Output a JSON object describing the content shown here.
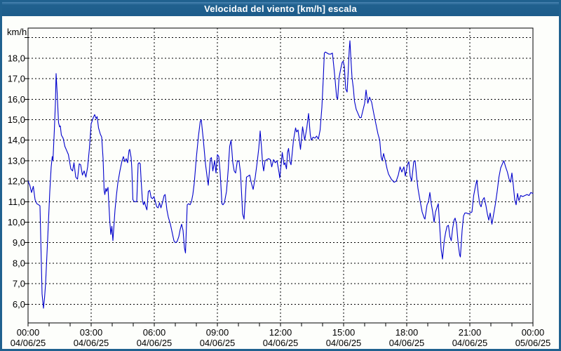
{
  "window": {
    "title": "Velocidad del viento [km/h] escala"
  },
  "colors": {
    "frame_blue": "#20618f",
    "titlebar_text": "#ffffff",
    "plot_background": "#fdfefb",
    "grid_color": "#000000",
    "series_color": "#0000cc"
  },
  "chart_data": {
    "type": "line",
    "title": "Velocidad del viento [km/h] escala",
    "ylabel": "km/h",
    "series_name": "Velocidad del viento",
    "grid": "dashed",
    "legend": "none",
    "x_range_minutes": 1440,
    "ylim": [
      5.0,
      19.5
    ],
    "ygrid": [
      6,
      7,
      8,
      9,
      10,
      11,
      12,
      13,
      14,
      15,
      16,
      17,
      18,
      19
    ],
    "ytick_labels": [
      "6,0",
      "7,0",
      "8,0",
      "9,0",
      "10,0",
      "11,0",
      "12,0",
      "13,0",
      "14,0",
      "15,0",
      "16,0",
      "17,0",
      "18,0",
      ""
    ],
    "x_minor_tick_minutes": 60,
    "xticks": [
      {
        "t": 0,
        "time": "00:00",
        "date": "04/06/25"
      },
      {
        "t": 180,
        "time": "03:00",
        "date": "04/06/25"
      },
      {
        "t": 360,
        "time": "06:00",
        "date": "04/06/25"
      },
      {
        "t": 540,
        "time": "09:00",
        "date": "04/06/25"
      },
      {
        "t": 720,
        "time": "12:00",
        "date": "04/06/25"
      },
      {
        "t": 900,
        "time": "15:00",
        "date": "04/06/25"
      },
      {
        "t": 1080,
        "time": "18:00",
        "date": "04/06/25"
      },
      {
        "t": 1260,
        "time": "21:00",
        "date": "04/06/25"
      },
      {
        "t": 1440,
        "time": "00:00",
        "date": "05/06/25"
      }
    ],
    "points": [
      [
        0,
        12.0
      ],
      [
        5,
        11.8
      ],
      [
        10,
        11.45
      ],
      [
        15,
        11.75
      ],
      [
        20,
        11.1
      ],
      [
        25,
        10.9
      ],
      [
        30,
        10.85
      ],
      [
        34,
        10.8
      ],
      [
        40,
        6.5
      ],
      [
        44,
        5.8
      ],
      [
        47,
        6.3
      ],
      [
        50,
        7.0
      ],
      [
        56,
        9.2
      ],
      [
        62,
        11.5
      ],
      [
        66,
        12.7
      ],
      [
        69,
        13.2
      ],
      [
        71,
        13.0
      ],
      [
        75,
        14.5
      ],
      [
        78,
        15.8
      ],
      [
        80,
        17.25
      ],
      [
        83,
        16.3
      ],
      [
        87,
        14.85
      ],
      [
        90,
        14.65
      ],
      [
        92,
        14.7
      ],
      [
        95,
        14.25
      ],
      [
        100,
        14.1
      ],
      [
        105,
        13.7
      ],
      [
        110,
        13.5
      ],
      [
        115,
        13.3
      ],
      [
        122,
        12.6
      ],
      [
        127,
        12.5
      ],
      [
        131,
        12.9
      ],
      [
        136,
        12.2
      ],
      [
        141,
        12.1
      ],
      [
        146,
        12.85
      ],
      [
        150,
        12.8
      ],
      [
        155,
        12.3
      ],
      [
        160,
        12.5
      ],
      [
        165,
        12.2
      ],
      [
        170,
        12.7
      ],
      [
        175,
        13.6
      ],
      [
        180,
        14.8
      ],
      [
        186,
        15.1
      ],
      [
        190,
        15.25
      ],
      [
        194,
        15.05
      ],
      [
        197,
        15.15
      ],
      [
        201,
        14.6
      ],
      [
        206,
        14.3
      ],
      [
        210,
        14.15
      ],
      [
        214,
        13.1
      ],
      [
        217,
        11.55
      ],
      [
        219,
        11.35
      ],
      [
        222,
        11.65
      ],
      [
        224,
        11.5
      ],
      [
        228,
        11.7
      ],
      [
        233,
        10.1
      ],
      [
        236,
        9.4
      ],
      [
        239,
        9.8
      ],
      [
        242,
        9.1
      ],
      [
        248,
        10.6
      ],
      [
        252,
        11.3
      ],
      [
        256,
        11.9
      ],
      [
        262,
        12.5
      ],
      [
        268,
        13.0
      ],
      [
        272,
        13.2
      ],
      [
        276,
        12.95
      ],
      [
        280,
        13.1
      ],
      [
        284,
        12.9
      ],
      [
        288,
        13.5
      ],
      [
        290,
        13.55
      ],
      [
        294,
        13.15
      ],
      [
        296,
        12.6
      ],
      [
        299,
        11.1
      ],
      [
        303,
        11.0
      ],
      [
        307,
        11.0
      ],
      [
        310,
        11.0
      ],
      [
        314,
        12.85
      ],
      [
        317,
        12.9
      ],
      [
        320,
        12.85
      ],
      [
        323,
        11.9
      ],
      [
        326,
        11.1
      ],
      [
        329,
        10.85
      ],
      [
        332,
        11.0
      ],
      [
        335,
        10.8
      ],
      [
        339,
        10.6
      ],
      [
        343,
        11.5
      ],
      [
        347,
        11.55
      ],
      [
        351,
        11.2
      ],
      [
        355,
        11.15
      ],
      [
        359,
        11.25
      ],
      [
        363,
        11.0
      ],
      [
        367,
        10.75
      ],
      [
        371,
        10.7
      ],
      [
        375,
        10.95
      ],
      [
        379,
        10.7
      ],
      [
        384,
        11.0
      ],
      [
        388,
        11.3
      ],
      [
        391,
        11.35
      ],
      [
        396,
        10.6
      ],
      [
        400,
        10.25
      ],
      [
        406,
        9.9
      ],
      [
        411,
        9.5
      ],
      [
        416,
        9.1
      ],
      [
        420,
        9.0
      ],
      [
        425,
        9.05
      ],
      [
        430,
        9.3
      ],
      [
        434,
        9.65
      ],
      [
        438,
        9.9
      ],
      [
        442,
        9.6
      ],
      [
        446,
        8.75
      ],
      [
        449,
        8.5
      ],
      [
        454,
        10.85
      ],
      [
        458,
        10.9
      ],
      [
        462,
        10.85
      ],
      [
        466,
        11.0
      ],
      [
        470,
        11.35
      ],
      [
        474,
        11.9
      ],
      [
        480,
        13.15
      ],
      [
        486,
        14.2
      ],
      [
        491,
        14.9
      ],
      [
        494,
        15.0
      ],
      [
        500,
        14.0
      ],
      [
        506,
        12.85
      ],
      [
        510,
        12.3
      ],
      [
        514,
        11.8
      ],
      [
        520,
        13.1
      ],
      [
        523,
        13.15
      ],
      [
        527,
        12.5
      ],
      [
        532,
        13.0
      ],
      [
        536,
        12.4
      ],
      [
        540,
        13.3
      ],
      [
        544,
        13.2
      ],
      [
        548,
        12.4
      ],
      [
        553,
        10.9
      ],
      [
        556,
        10.85
      ],
      [
        560,
        10.95
      ],
      [
        566,
        11.5
      ],
      [
        571,
        12.6
      ],
      [
        575,
        13.7
      ],
      [
        579,
        14.0
      ],
      [
        584,
        12.9
      ],
      [
        588,
        12.5
      ],
      [
        592,
        12.4
      ],
      [
        597,
        13.0
      ],
      [
        602,
        12.95
      ],
      [
        606,
        12.4
      ],
      [
        612,
        10.4
      ],
      [
        616,
        10.15
      ],
      [
        620,
        11.3
      ],
      [
        623,
        12.2
      ],
      [
        628,
        12.25
      ],
      [
        632,
        12.3
      ],
      [
        637,
        11.9
      ],
      [
        642,
        11.6
      ],
      [
        648,
        12.2
      ],
      [
        654,
        13.0
      ],
      [
        658,
        13.6
      ],
      [
        662,
        14.45
      ],
      [
        666,
        13.6
      ],
      [
        669,
        12.85
      ],
      [
        672,
        12.5
      ],
      [
        676,
        13.0
      ],
      [
        681,
        13.05
      ],
      [
        686,
        13.1
      ],
      [
        691,
        13.05
      ],
      [
        695,
        12.7
      ],
      [
        700,
        13.05
      ],
      [
        705,
        12.9
      ],
      [
        710,
        13.0
      ],
      [
        716,
        12.4
      ],
      [
        718,
        12.15
      ],
      [
        725,
        13.4
      ],
      [
        730,
        12.8
      ],
      [
        733,
        12.9
      ],
      [
        737,
        12.6
      ],
      [
        740,
        13.4
      ],
      [
        743,
        13.6
      ],
      [
        747,
        12.95
      ],
      [
        750,
        12.8
      ],
      [
        753,
        13.3
      ],
      [
        757,
        14.0
      ],
      [
        763,
        14.6
      ],
      [
        766,
        14.4
      ],
      [
        770,
        14.5
      ],
      [
        777,
        13.55
      ],
      [
        783,
        14.65
      ],
      [
        789,
        14.0
      ],
      [
        795,
        14.6
      ],
      [
        800,
        15.3
      ],
      [
        805,
        14.25
      ],
      [
        808,
        14.0
      ],
      [
        813,
        14.15
      ],
      [
        818,
        14.1
      ],
      [
        823,
        14.2
      ],
      [
        828,
        14.05
      ],
      [
        833,
        14.5
      ],
      [
        838,
        15.6
      ],
      [
        842,
        17.0
      ],
      [
        845,
        18.25
      ],
      [
        848,
        18.3
      ],
      [
        853,
        18.25
      ],
      [
        858,
        18.2
      ],
      [
        863,
        18.2
      ],
      [
        868,
        18.25
      ],
      [
        872,
        17.6
      ],
      [
        876,
        16.9
      ],
      [
        880,
        16.1
      ],
      [
        883,
        16.0
      ],
      [
        887,
        17.05
      ],
      [
        892,
        17.5
      ],
      [
        896,
        17.8
      ],
      [
        899,
        17.85
      ],
      [
        902,
        17.6
      ],
      [
        906,
        16.5
      ],
      [
        910,
        16.35
      ],
      [
        913,
        17.3
      ],
      [
        916,
        18.4
      ],
      [
        918,
        18.85
      ],
      [
        921,
        17.9
      ],
      [
        924,
        17.05
      ],
      [
        928,
        16.5
      ],
      [
        931,
        15.9
      ],
      [
        936,
        15.5
      ],
      [
        941,
        15.3
      ],
      [
        946,
        15.1
      ],
      [
        950,
        15.1
      ],
      [
        955,
        15.45
      ],
      [
        960,
        15.8
      ],
      [
        964,
        16.45
      ],
      [
        969,
        15.8
      ],
      [
        974,
        16.1
      ],
      [
        980,
        15.85
      ],
      [
        986,
        15.3
      ],
      [
        992,
        14.8
      ],
      [
        998,
        14.3
      ],
      [
        1003,
        14.0
      ],
      [
        1007,
        13.2
      ],
      [
        1010,
        13.0
      ],
      [
        1014,
        13.35
      ],
      [
        1019,
        13.0
      ],
      [
        1024,
        12.6
      ],
      [
        1028,
        12.35
      ],
      [
        1036,
        12.1
      ],
      [
        1044,
        11.95
      ],
      [
        1050,
        12.0
      ],
      [
        1056,
        12.3
      ],
      [
        1061,
        12.7
      ],
      [
        1066,
        12.45
      ],
      [
        1072,
        12.7
      ],
      [
        1076,
        12.25
      ],
      [
        1082,
        12.8
      ],
      [
        1086,
        12.95
      ],
      [
        1090,
        12.25
      ],
      [
        1094,
        12.0
      ],
      [
        1100,
        12.95
      ],
      [
        1104,
        13.0
      ],
      [
        1108,
        12.25
      ],
      [
        1112,
        11.65
      ],
      [
        1118,
        11.05
      ],
      [
        1124,
        10.5
      ],
      [
        1130,
        10.2
      ],
      [
        1132,
        10.15
      ],
      [
        1138,
        10.85
      ],
      [
        1142,
        11.0
      ],
      [
        1146,
        11.45
      ],
      [
        1150,
        10.9
      ],
      [
        1154,
        10.5
      ],
      [
        1158,
        10.0
      ],
      [
        1162,
        10.5
      ],
      [
        1166,
        10.7
      ],
      [
        1170,
        10.9
      ],
      [
        1174,
        9.8
      ],
      [
        1178,
        8.7
      ],
      [
        1182,
        8.2
      ],
      [
        1187,
        9.1
      ],
      [
        1191,
        9.5
      ],
      [
        1195,
        9.8
      ],
      [
        1199,
        9.85
      ],
      [
        1203,
        9.3
      ],
      [
        1207,
        9.1
      ],
      [
        1211,
        9.7
      ],
      [
        1215,
        10.1
      ],
      [
        1218,
        10.2
      ],
      [
        1222,
        9.9
      ],
      [
        1227,
        8.9
      ],
      [
        1231,
        8.4
      ],
      [
        1233,
        8.3
      ],
      [
        1238,
        9.6
      ],
      [
        1242,
        10.3
      ],
      [
        1246,
        10.45
      ],
      [
        1251,
        10.45
      ],
      [
        1256,
        10.4
      ],
      [
        1261,
        10.45
      ],
      [
        1266,
        10.5
      ],
      [
        1271,
        11.3
      ],
      [
        1276,
        11.75
      ],
      [
        1280,
        12.05
      ],
      [
        1284,
        11.4
      ],
      [
        1288,
        10.9
      ],
      [
        1292,
        10.75
      ],
      [
        1297,
        11.1
      ],
      [
        1301,
        11.2
      ],
      [
        1306,
        10.8
      ],
      [
        1310,
        10.4
      ],
      [
        1314,
        10.1
      ],
      [
        1318,
        10.45
      ],
      [
        1323,
        9.9
      ],
      [
        1328,
        10.4
      ],
      [
        1333,
        10.9
      ],
      [
        1338,
        11.5
      ],
      [
        1343,
        12.2
      ],
      [
        1348,
        12.65
      ],
      [
        1353,
        12.85
      ],
      [
        1357,
        13.0
      ],
      [
        1362,
        12.7
      ],
      [
        1367,
        12.45
      ],
      [
        1372,
        12.1
      ],
      [
        1376,
        11.95
      ],
      [
        1380,
        12.4
      ],
      [
        1384,
        11.8
      ],
      [
        1388,
        11.1
      ],
      [
        1392,
        10.85
      ],
      [
        1396,
        11.4
      ],
      [
        1400,
        11.05
      ],
      [
        1405,
        11.3
      ],
      [
        1411,
        11.25
      ],
      [
        1417,
        11.3
      ],
      [
        1423,
        11.35
      ],
      [
        1429,
        11.3
      ],
      [
        1434,
        11.45
      ],
      [
        1440,
        11.4
      ]
    ]
  }
}
